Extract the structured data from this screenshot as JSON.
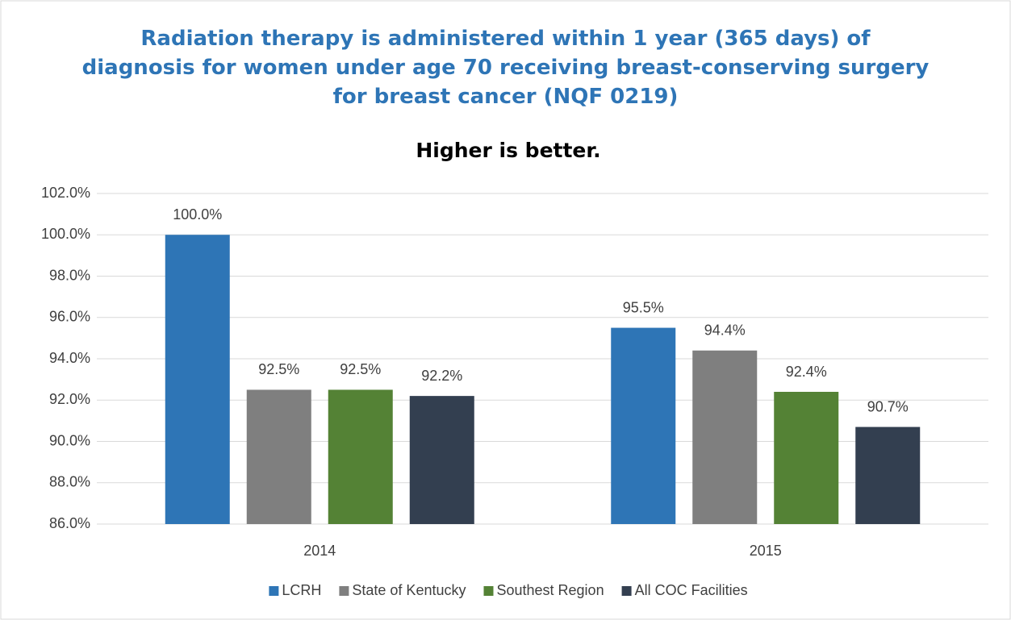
{
  "chart_data": {
    "type": "bar",
    "title": "Radiation therapy is administered within 1 year (365 days) of diagnosis for women under age 70 receiving breast-conserving surgery for breast cancer (NQF 0219)",
    "subtitle": "Higher is better.",
    "categories": [
      "2014",
      "2015"
    ],
    "series": [
      {
        "name": "LCRH",
        "color": "#2e75b6",
        "values": [
          100.0,
          95.5
        ],
        "value_labels": [
          "100.0%",
          "95.5%"
        ]
      },
      {
        "name": "State of Kentucky",
        "color": "#7f7f7f",
        "values": [
          92.5,
          94.4
        ],
        "value_labels": [
          "92.5%",
          "94.4%"
        ]
      },
      {
        "name": "Southest Region",
        "color": "#548235",
        "values": [
          92.5,
          92.4
        ],
        "value_labels": [
          "92.5%",
          "92.4%"
        ]
      },
      {
        "name": "All COC Facilities",
        "color": "#333f50",
        "values": [
          92.2,
          90.7
        ],
        "value_labels": [
          "92.2%",
          "90.7%"
        ]
      }
    ],
    "ylim": [
      86,
      102
    ],
    "yticks": [
      {
        "value": 86,
        "label": "86.0%"
      },
      {
        "value": 88,
        "label": "88.0%"
      },
      {
        "value": 90,
        "label": "90.0%"
      },
      {
        "value": 92,
        "label": "92.0%"
      },
      {
        "value": 94,
        "label": "94.0%"
      },
      {
        "value": 96,
        "label": "96.0%"
      },
      {
        "value": 98,
        "label": "98.0%"
      },
      {
        "value": 100,
        "label": "100.0%"
      },
      {
        "value": 102,
        "label": "102.0%"
      }
    ],
    "grid": true,
    "legend": "bottom"
  }
}
